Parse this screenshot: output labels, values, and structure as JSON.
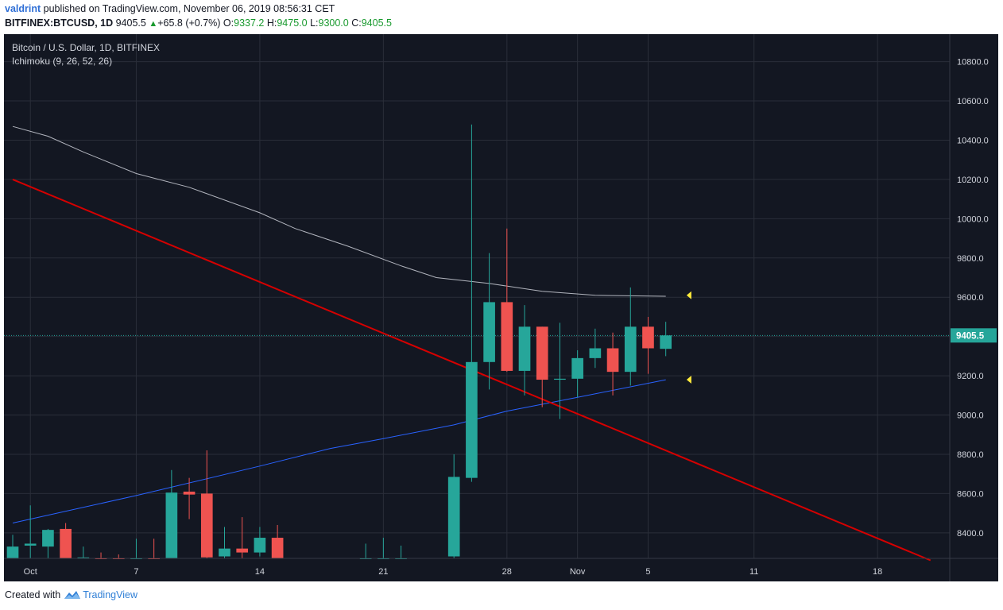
{
  "header": {
    "author": "valdrint",
    "published_text": "published on TradingView.com, November 06, 2019 08:56:31 CET",
    "symbol": "BITFINEX:BTCUSD, 1D",
    "last": "9405.5",
    "change_icon": "up-triangle-icon",
    "change": "+65.8 (+0.7%)",
    "o_label": "O:",
    "o": "9337.2",
    "h_label": "H:",
    "h": "9475.0",
    "l_label": "L:",
    "l": "9300.0",
    "c_label": "C:",
    "c": "9405.5"
  },
  "legend": {
    "title": "Bitcoin / U.S. Dollar, 1D, BITFINEX",
    "indicator": "Ichimoku (9, 26, 52, 26)"
  },
  "footer": {
    "created_with": "Created with",
    "brand": "TradingView",
    "brand_icon": "tradingview-logo-icon"
  },
  "colors": {
    "background": "#131722",
    "grid": "#2a2e39",
    "axis_text": "#d1d4dc",
    "bull": "#26a69a",
    "bear": "#ef5350",
    "trendline": "#d50000",
    "upper_line": "#b2b5be",
    "lower_line": "#2962ff",
    "marker": "#ffeb3b",
    "price_label_bg": "#26a69a"
  },
  "chart_data": {
    "type": "candlestick",
    "x_start_date": "2019-09-30",
    "x_range": [
      "2019-09-30",
      "2019-11-22"
    ],
    "y_range": [
      8270,
      10940
    ],
    "y_ticks": [
      "8400.0",
      "8600.0",
      "8800.0",
      "9000.0",
      "9200.0",
      "9400.0",
      "9600.0",
      "9800.0",
      "10000.0",
      "10200.0",
      "10400.0",
      "10600.0",
      "10800.0"
    ],
    "x_ticks": [
      {
        "date": "2019-10-01",
        "label": "Oct"
      },
      {
        "date": "2019-10-07",
        "label": "7"
      },
      {
        "date": "2019-10-14",
        "label": "14"
      },
      {
        "date": "2019-10-21",
        "label": "21"
      },
      {
        "date": "2019-10-28",
        "label": "28"
      },
      {
        "date": "2019-11-01",
        "label": "Nov"
      },
      {
        "date": "2019-11-05",
        "label": "5"
      },
      {
        "date": "2019-11-11",
        "label": "11"
      },
      {
        "date": "2019-11-18",
        "label": "18"
      }
    ],
    "last_price": 9405.5,
    "last_price_label": "9405.5",
    "candles": [
      {
        "date": "2019-09-30",
        "o": 8260,
        "h": 8390,
        "l": 8260,
        "c": 8330
      },
      {
        "date": "2019-10-01",
        "o": 8335,
        "h": 8540,
        "l": 8270,
        "c": 8345
      },
      {
        "date": "2019-10-02",
        "o": 8330,
        "h": 8420,
        "l": 8260,
        "c": 8415
      },
      {
        "date": "2019-10-03",
        "o": 8420,
        "h": 8450,
        "l": 8260,
        "c": 8270
      },
      {
        "date": "2019-10-04",
        "o": 8270,
        "h": 8330,
        "l": 8260,
        "c": 8275
      },
      {
        "date": "2019-10-05",
        "o": 8270,
        "h": 8300,
        "l": 8260,
        "c": 8265
      },
      {
        "date": "2019-10-06",
        "o": 8270,
        "h": 8290,
        "l": 8260,
        "c": 8262
      },
      {
        "date": "2019-10-07",
        "o": 8260,
        "h": 8370,
        "l": 8260,
        "c": 8262
      },
      {
        "date": "2019-10-08",
        "o": 8265,
        "h": 8370,
        "l": 8260,
        "c": 8262
      },
      {
        "date": "2019-10-09",
        "o": 8270,
        "h": 8720,
        "l": 8260,
        "c": 8605
      },
      {
        "date": "2019-10-10",
        "o": 8610,
        "h": 8680,
        "l": 8470,
        "c": 8595
      },
      {
        "date": "2019-10-11",
        "o": 8600,
        "h": 8820,
        "l": 8270,
        "c": 8275
      },
      {
        "date": "2019-10-12",
        "o": 8280,
        "h": 8430,
        "l": 8260,
        "c": 8320
      },
      {
        "date": "2019-10-13",
        "o": 8320,
        "h": 8480,
        "l": 8250,
        "c": 8300
      },
      {
        "date": "2019-10-14",
        "o": 8300,
        "h": 8430,
        "l": 8280,
        "c": 8375
      },
      {
        "date": "2019-10-15",
        "o": 8375,
        "h": 8440,
        "l": 8260,
        "c": 8270
      },
      {
        "date": "2019-10-20",
        "o": 8262,
        "h": 8345,
        "l": 8260,
        "c": 8262
      },
      {
        "date": "2019-10-21",
        "o": 8262,
        "h": 8375,
        "l": 8260,
        "c": 8262
      },
      {
        "date": "2019-10-22",
        "o": 8262,
        "h": 8335,
        "l": 8260,
        "c": 8262
      },
      {
        "date": "2019-10-25",
        "o": 8280,
        "h": 8800,
        "l": 8260,
        "c": 8685
      },
      {
        "date": "2019-10-26",
        "o": 8680,
        "h": 10480,
        "l": 8660,
        "c": 9270
      },
      {
        "date": "2019-10-27",
        "o": 9270,
        "h": 9825,
        "l": 9130,
        "c": 9575
      },
      {
        "date": "2019-10-28",
        "o": 9575,
        "h": 9950,
        "l": 9220,
        "c": 9225
      },
      {
        "date": "2019-10-29",
        "o": 9225,
        "h": 9560,
        "l": 9100,
        "c": 9450
      },
      {
        "date": "2019-10-30",
        "o": 9450,
        "h": 9450,
        "l": 9040,
        "c": 9180
      },
      {
        "date": "2019-10-31",
        "o": 9180,
        "h": 9470,
        "l": 8980,
        "c": 9185
      },
      {
        "date": "2019-11-01",
        "o": 9185,
        "h": 9330,
        "l": 9090,
        "c": 9290
      },
      {
        "date": "2019-11-02",
        "o": 9290,
        "h": 9440,
        "l": 9240,
        "c": 9340
      },
      {
        "date": "2019-11-03",
        "o": 9340,
        "h": 9420,
        "l": 9100,
        "c": 9220
      },
      {
        "date": "2019-11-04",
        "o": 9220,
        "h": 9650,
        "l": 9150,
        "c": 9450
      },
      {
        "date": "2019-11-05",
        "o": 9450,
        "h": 9500,
        "l": 9210,
        "c": 9340
      },
      {
        "date": "2019-11-06",
        "o": 9337.2,
        "h": 9475,
        "l": 9300,
        "c": 9405.5
      }
    ],
    "trendline": [
      {
        "date": "2019-09-30",
        "price": 10200
      },
      {
        "date": "2019-11-21",
        "price": 8260
      }
    ],
    "upper_line": [
      {
        "date": "2019-09-30",
        "price": 10470
      },
      {
        "date": "2019-10-02",
        "price": 10420
      },
      {
        "date": "2019-10-04",
        "price": 10340
      },
      {
        "date": "2019-10-07",
        "price": 10230
      },
      {
        "date": "2019-10-10",
        "price": 10160
      },
      {
        "date": "2019-10-14",
        "price": 10030
      },
      {
        "date": "2019-10-16",
        "price": 9950
      },
      {
        "date": "2019-10-19",
        "price": 9860
      },
      {
        "date": "2019-10-22",
        "price": 9760
      },
      {
        "date": "2019-10-24",
        "price": 9700
      },
      {
        "date": "2019-10-27",
        "price": 9670
      },
      {
        "date": "2019-10-30",
        "price": 9630
      },
      {
        "date": "2019-11-02",
        "price": 9610
      },
      {
        "date": "2019-11-06",
        "price": 9605
      }
    ],
    "lower_line": [
      {
        "date": "2019-09-30",
        "price": 8450
      },
      {
        "date": "2019-10-07",
        "price": 8590
      },
      {
        "date": "2019-10-14",
        "price": 8740
      },
      {
        "date": "2019-10-18",
        "price": 8830
      },
      {
        "date": "2019-10-21",
        "price": 8880
      },
      {
        "date": "2019-10-25",
        "price": 8950
      },
      {
        "date": "2019-10-28",
        "price": 9020
      },
      {
        "date": "2019-11-01",
        "price": 9090
      },
      {
        "date": "2019-11-06",
        "price": 9180
      }
    ],
    "markers": [
      {
        "date": "2019-11-07",
        "price": 9610
      },
      {
        "date": "2019-11-07",
        "price": 9180
      }
    ]
  }
}
